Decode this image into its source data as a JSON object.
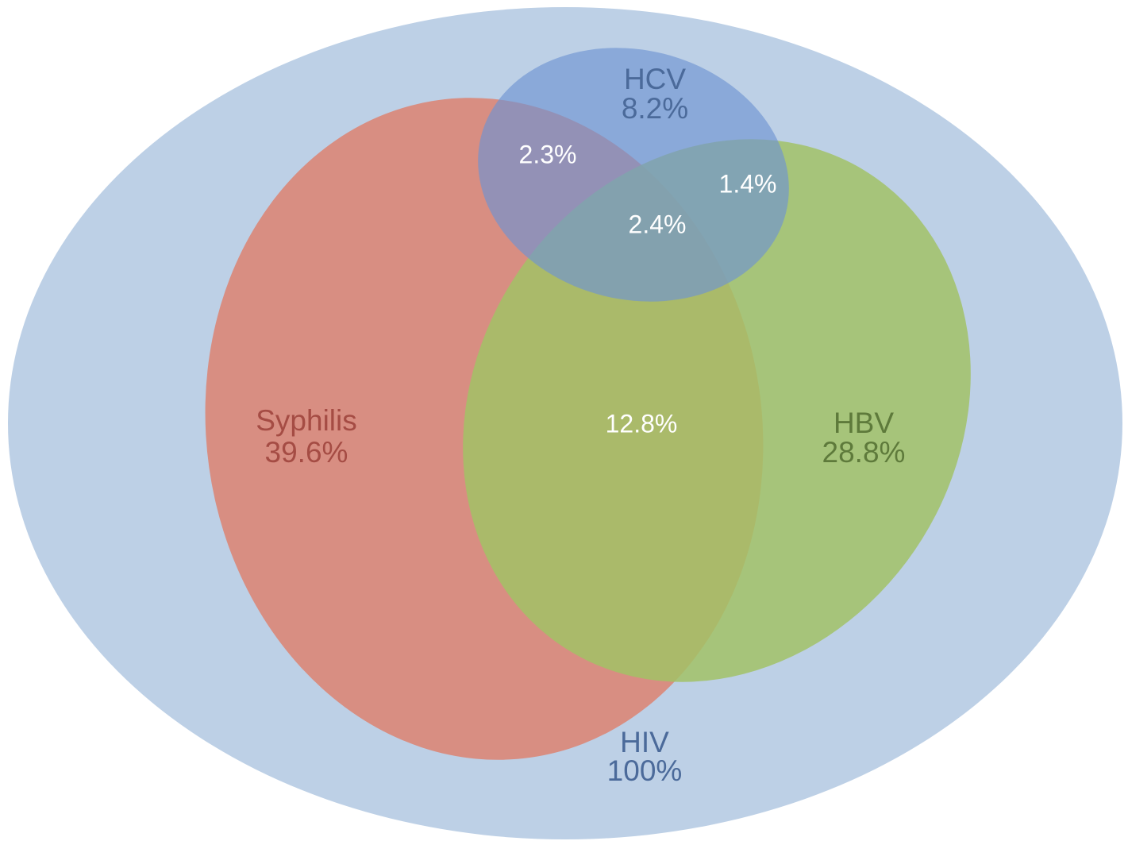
{
  "sets": [
    {
      "name": "HIV",
      "value": "100%"
    },
    {
      "name": "Syphilis",
      "value": "39.6%"
    },
    {
      "name": "HBV",
      "value": "28.8%"
    },
    {
      "name": "HCV",
      "value": "8.2%"
    }
  ],
  "intersections": [
    {
      "label": "2.3%"
    },
    {
      "label": "1.4%"
    },
    {
      "label": "2.4%"
    },
    {
      "label": "12.8%"
    }
  ]
}
